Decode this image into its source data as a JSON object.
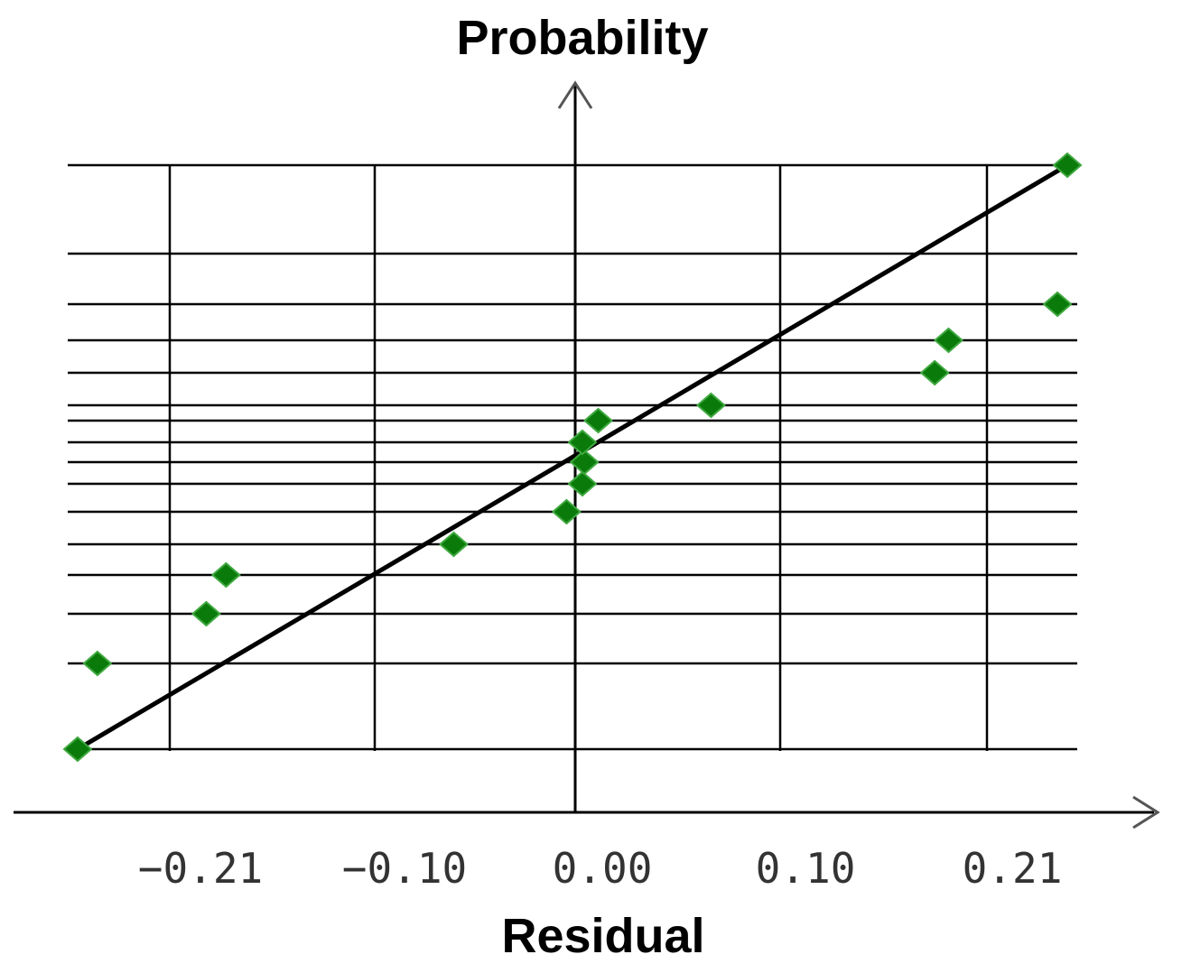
{
  "chart_data": {
    "type": "scatter",
    "title": "",
    "ylabel": "Probability",
    "xlabel": "Residual",
    "x_ticks": [
      "−0.21",
      "−0.10",
      "0.00",
      "0.10",
      "0.21"
    ],
    "x_tick_values": [
      -0.21,
      -0.1,
      0.0,
      0.1,
      0.21
    ],
    "xlim": [
      -0.26,
      0.25
    ],
    "y_levels": [
      0.0313,
      0.0938,
      0.1563,
      0.2188,
      0.2813,
      0.3438,
      0.4063,
      0.4688,
      0.5313,
      0.5938,
      0.6563,
      0.7188,
      0.7813,
      0.8438,
      0.9063,
      0.9688
    ],
    "grid": true,
    "fit_line": {
      "x": [
        -0.255,
        0.245
      ],
      "y_level_index": [
        0,
        15
      ]
    },
    "points": [
      {
        "x": -0.255,
        "y_level_index": 0
      },
      {
        "x": -0.245,
        "y_level_index": 1
      },
      {
        "x": -0.19,
        "y_level_index": 2
      },
      {
        "x": -0.18,
        "y_level_index": 3
      },
      {
        "x": -0.065,
        "y_level_index": 4
      },
      {
        "x": -0.008,
        "y_level_index": 5
      },
      {
        "x": 0.0,
        "y_level_index": 6
      },
      {
        "x": 0.001,
        "y_level_index": 7
      },
      {
        "x": 0.0,
        "y_level_index": 8
      },
      {
        "x": 0.008,
        "y_level_index": 9
      },
      {
        "x": 0.065,
        "y_level_index": 10
      },
      {
        "x": 0.178,
        "y_level_index": 11
      },
      {
        "x": 0.185,
        "y_level_index": 12
      },
      {
        "x": 0.24,
        "y_level_index": 13
      },
      {
        "x": 0.245,
        "y_level_index": 15
      }
    ],
    "colors": {
      "points": "#0a7a0a",
      "line": "#000000",
      "grid": "#000000"
    }
  }
}
